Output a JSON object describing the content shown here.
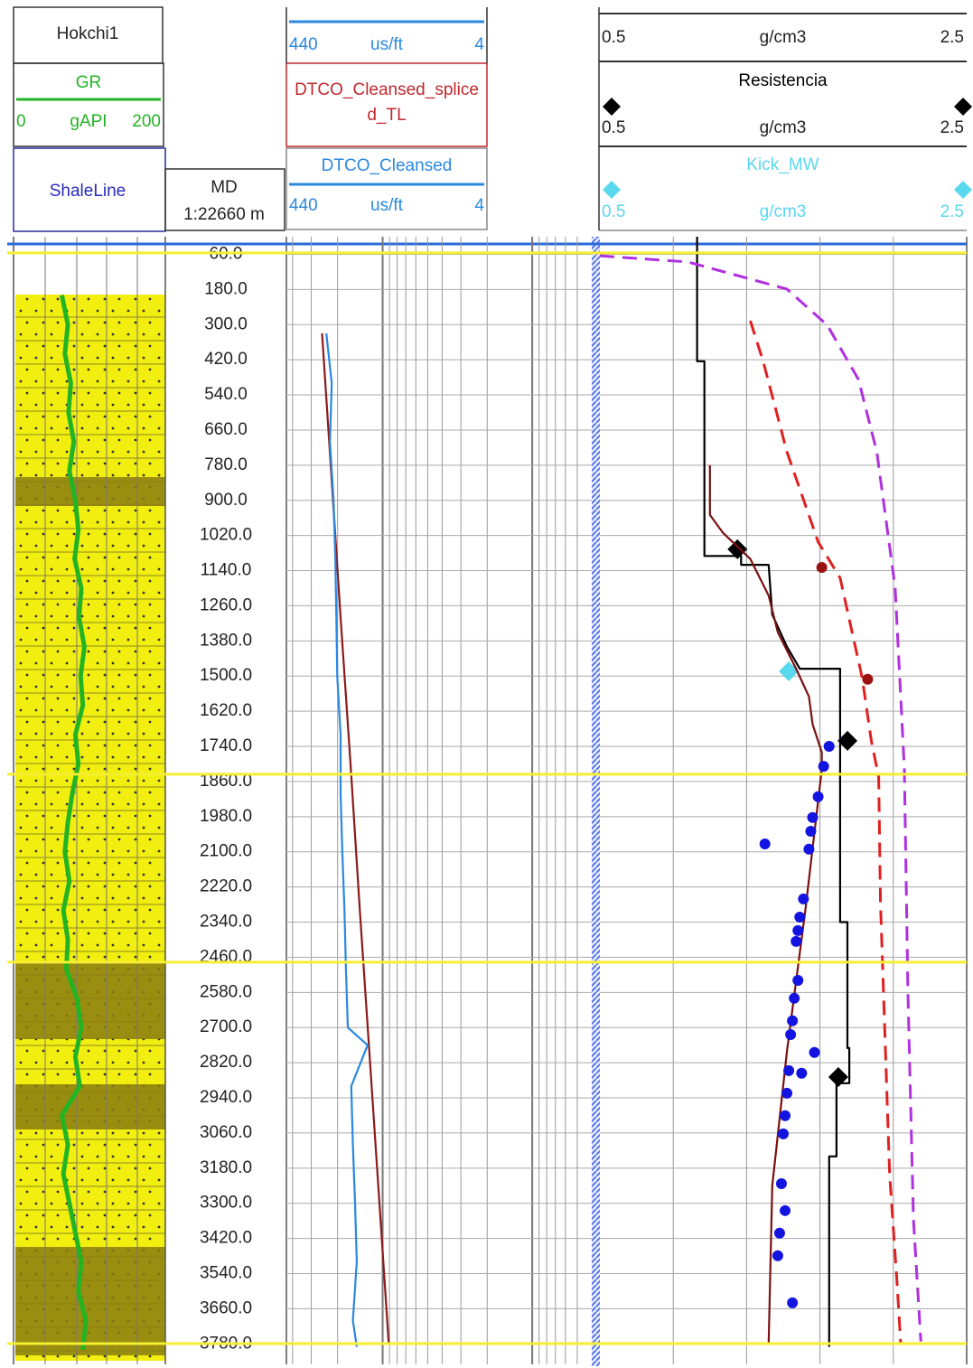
{
  "chart_data": {
    "type": "well-log",
    "well": "Hokchi1",
    "depth_label": "MD",
    "scale_label": "1:22660 m",
    "ylim": [
      0,
      3850
    ],
    "yticks": [
      {
        "value": 60,
        "label": "60.0"
      },
      {
        "value": 180,
        "label": "180.0"
      },
      {
        "value": 300,
        "label": "300.0"
      },
      {
        "value": 420,
        "label": "420.0"
      },
      {
        "value": 540,
        "label": "540.0"
      },
      {
        "value": 660,
        "label": "660.0"
      },
      {
        "value": 780,
        "label": "780.0"
      },
      {
        "value": 900,
        "label": "900.0"
      },
      {
        "value": 1020,
        "label": "1020.0"
      },
      {
        "value": 1140,
        "label": "1140.0"
      },
      {
        "value": 1260,
        "label": "1260.0"
      },
      {
        "value": 1380,
        "label": "1380.0"
      },
      {
        "value": 1500,
        "label": "1500.0"
      },
      {
        "value": 1620,
        "label": "1620.0"
      },
      {
        "value": 1740,
        "label": "1740.0"
      },
      {
        "value": 1860,
        "label": "1860.0"
      },
      {
        "value": 1980,
        "label": "1980.0"
      },
      {
        "value": 2100,
        "label": "2100.0"
      },
      {
        "value": 2220,
        "label": "2220.0"
      },
      {
        "value": 2340,
        "label": "2340.0"
      },
      {
        "value": 2460,
        "label": "2460.0"
      },
      {
        "value": 2580,
        "label": "2580.0"
      },
      {
        "value": 2700,
        "label": "2700.0"
      },
      {
        "value": 2820,
        "label": "2820.0"
      },
      {
        "value": 2940,
        "label": "2940.0"
      },
      {
        "value": 3060,
        "label": "3060.0"
      },
      {
        "value": 3180,
        "label": "3180.0"
      },
      {
        "value": 3300,
        "label": "3300.0"
      },
      {
        "value": 3420,
        "label": "3420.0"
      },
      {
        "value": 3540,
        "label": "3540.0"
      },
      {
        "value": 3660,
        "label": "3660.0"
      },
      {
        "value": 3780,
        "label": "3780.0"
      }
    ],
    "grid": true,
    "tops": [
      55,
      1835,
      2477,
      3779
    ],
    "tracks": [
      {
        "lithology": "ShaleLine",
        "log": false,
        "series": [
          {
            "name": "GR",
            "color": "#22b422",
            "xlim": [
              0,
              200
            ],
            "xticks": [
              0,
              200
            ],
            "unit": "gAPI",
            "depth": [
              200,
              300,
              400,
              500,
              600,
              700,
              800,
              900,
              1000,
              1100,
              1200,
              1300,
              1400,
              1500,
              1600,
              1700,
              1800,
              1900,
              2000,
              2100,
              2200,
              2300,
              2400,
              2500,
              2600,
              2700,
              2800,
              2900,
              3000,
              3100,
              3200,
              3300,
              3400,
              3500,
              3600,
              3700,
              3800
            ],
            "values": [
              62,
              70,
              66,
              74,
              71,
              78,
              72,
              80,
              84,
              79,
              88,
              85,
              92,
              87,
              90,
              80,
              84,
              76,
              70,
              66,
              72,
              64,
              70,
              68,
              82,
              88,
              80,
              86,
              62,
              70,
              64,
              72,
              80,
              88,
              84,
              94,
              90
            ]
          }
        ]
      },
      {
        "log": true,
        "series": [
          {
            "name": "DTCO_Cleansed_spliced_TL",
            "color": "#8b1a1a",
            "xlim": [
              440,
              4
            ],
            "xticks": [
              440,
              4
            ],
            "unit": "us/ft",
            "depth": [
              330,
              800,
              1300,
              1800,
              2300,
              2800,
              3300,
              3780
            ],
            "values": [
              254,
              221,
              191,
              164,
              142,
              122,
              105,
              91
            ]
          },
          {
            "name": "DTCO_Cleansed",
            "color": "#2a88e0",
            "xlim": [
              440,
              4
            ],
            "xticks": [
              440,
              4
            ],
            "unit": "us/ft",
            "depth": [
              330,
              500,
              700,
              900,
              1100,
              1300,
              1500,
              1700,
              1900,
              2100,
              2300,
              2500,
              2700,
              2760,
              2900,
              3100,
              3300,
              3500,
              3700,
              3790
            ],
            "values": [
              238,
              219,
              225,
              213,
              207,
              204,
              201,
              191,
              191,
              186,
              180,
              176,
              171,
              126,
              162,
              158,
              153,
              149,
              158,
              149
            ]
          }
        ]
      },
      {
        "log": false,
        "series": [
          {
            "color": "#000000",
            "xlim": [
              0.5,
              2.5
            ],
            "xticks": [
              0.5,
              2.5
            ],
            "unit": "g/cm3",
            "style": "solid",
            "depth": [
              0,
              425,
              425,
              1090,
              1090,
              1120,
              1120,
              1290,
              1400,
              1475,
              1475,
              2340,
              2340,
              2770,
              2770,
              2890,
              2890,
              3140,
              3140,
              3790
            ],
            "values": [
              1.03,
              1.03,
              1.07,
              1.07,
              1.27,
              1.27,
              1.42,
              1.44,
              1.52,
              1.59,
              1.81,
              1.81,
              1.85,
              1.85,
              1.86,
              1.86,
              1.79,
              1.79,
              1.75,
              1.75
            ]
          },
          {
            "name": "Resistencia",
            "color": "#000000",
            "xlim": [
              0.5,
              2.5
            ],
            "xticks": [
              0.5,
              2.5
            ],
            "unit": "g/cm3",
            "marker": "diamond",
            "depth": [
              1067,
              1721,
              2869
            ],
            "values": [
              1.25,
              1.85,
              1.8
            ]
          },
          {
            "name": "Kick_MW",
            "color": "#5ad8ee",
            "xlim": [
              0.5,
              2.5
            ],
            "xticks": [
              0.5,
              2.5
            ],
            "unit": "g/cm3",
            "marker": "diamond",
            "depth": [
              1484
            ],
            "values": [
              1.53
            ]
          },
          {
            "color": "#7a1010",
            "xlim": [
              0.5,
              2.5
            ],
            "style": "solid",
            "depth": [
              780,
              950,
              1010,
              1100,
              1225,
              1350,
              1475,
              1570,
              1665,
              1760,
              1820,
              2300,
              2780,
              3240,
              3780
            ],
            "values": [
              1.1,
              1.1,
              1.17,
              1.32,
              1.42,
              1.47,
              1.57,
              1.64,
              1.66,
              1.71,
              1.71,
              1.62,
              1.52,
              1.44,
              1.42
            ]
          },
          {
            "color": "#e02020",
            "xlim": [
              0.5,
              2.5
            ],
            "style": "dashed",
            "depth": [
              287,
              425,
              735,
              1042,
              1165,
              1505,
              1720,
              1845,
              2275,
              3200,
              3570,
              3775
            ],
            "values": [
              1.32,
              1.39,
              1.52,
              1.69,
              1.81,
              1.93,
              1.98,
              2.02,
              2.03,
              2.08,
              2.12,
              2.14
            ]
          },
          {
            "color": "#b030e0",
            "xlim": [
              0.5,
              2.5
            ],
            "style": "dashed",
            "depth": [
              65,
              86,
              179,
              302,
              487,
              734,
              1197,
              1814,
              2585,
              3356,
              3772
            ],
            "values": [
              0.5,
              0.98,
              1.52,
              1.74,
              1.91,
              2.01,
              2.11,
              2.16,
              2.18,
              2.21,
              2.25
            ]
          },
          {
            "color": "#1414e0",
            "xlim": [
              0.5,
              2.5
            ],
            "marker": "dot",
            "depth": [
              1740,
              1808,
              1912,
              1983,
              2030,
              2091,
              2073,
              2261,
              2323,
              2369,
              2406,
              2539,
              2600,
              2677,
              2724,
              2785,
              2856,
              2847,
              2924,
              3001,
              3063,
              3233,
              3325,
              3402,
              3479,
              3640
            ],
            "values": [
              1.75,
              1.72,
              1.69,
              1.66,
              1.65,
              1.64,
              1.4,
              1.61,
              1.59,
              1.58,
              1.57,
              1.58,
              1.56,
              1.55,
              1.54,
              1.67,
              1.6,
              1.53,
              1.52,
              1.51,
              1.5,
              1.49,
              1.51,
              1.48,
              1.47,
              1.55
            ]
          },
          {
            "color": "#9a1212",
            "xlim": [
              0.5,
              2.5
            ],
            "marker": "dot",
            "depth": [
              1129,
              1511
            ],
            "values": [
              1.71,
              1.96
            ]
          }
        ]
      }
    ]
  }
}
